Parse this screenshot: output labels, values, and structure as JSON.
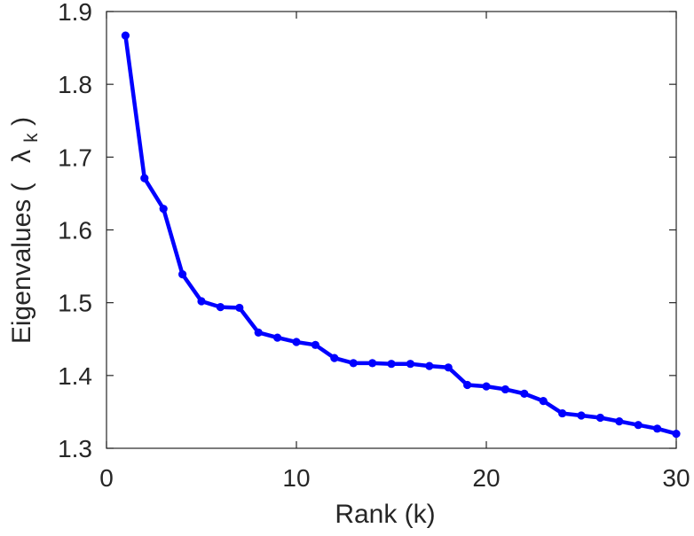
{
  "chart_data": {
    "type": "line",
    "title": "",
    "xlabel": "Rank (k)",
    "ylabel_main": "Eigenvalues (",
    "ylabel_symbol": "λ",
    "ylabel_subscript": "k",
    "ylabel_close": ")",
    "xlim": [
      0,
      30
    ],
    "ylim": [
      1.3,
      1.9
    ],
    "xticks": [
      0,
      10,
      20,
      30
    ],
    "yticks": [
      1.3,
      1.4,
      1.5,
      1.6,
      1.7,
      1.8,
      1.9
    ],
    "xtick_labels": [
      "0",
      "10",
      "20",
      "30"
    ],
    "ytick_labels": [
      "1.3",
      "1.4",
      "1.5",
      "1.6",
      "1.7",
      "1.8",
      "1.9"
    ],
    "grid": false,
    "line_color": "#0000ff",
    "series": [
      {
        "x": [
          1,
          2,
          3,
          4,
          5,
          6,
          7,
          8,
          9,
          10,
          11,
          12,
          13,
          14,
          15,
          16,
          17,
          18,
          19,
          20,
          21,
          22,
          23,
          24,
          25,
          26,
          27,
          28,
          29,
          30
        ],
        "values": [
          1.867,
          1.671,
          1.629,
          1.539,
          1.502,
          1.494,
          1.493,
          1.459,
          1.452,
          1.446,
          1.442,
          1.424,
          1.417,
          1.417,
          1.416,
          1.416,
          1.413,
          1.411,
          1.387,
          1.385,
          1.381,
          1.375,
          1.365,
          1.348,
          1.345,
          1.342,
          1.337,
          1.332,
          1.327,
          1.32
        ]
      }
    ]
  }
}
